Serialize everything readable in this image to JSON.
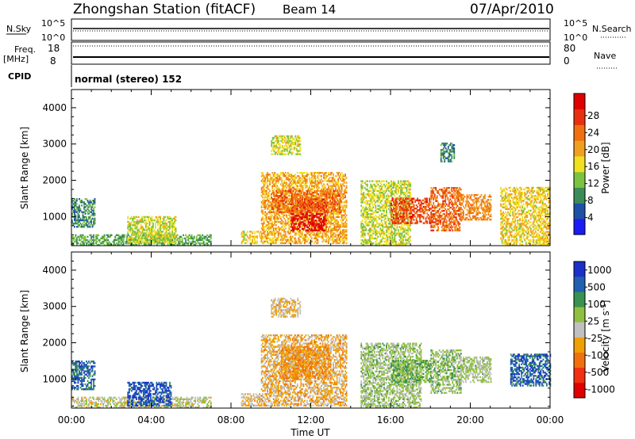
{
  "header": {
    "station": "Zhongshan Station (fitACF)",
    "beam": "Beam 14",
    "date": "07/Apr/2010"
  },
  "status": {
    "nsky_label": "N.Sky",
    "nsky_ticks": [
      "10^5",
      "10^0"
    ],
    "freq_label": "Freq.",
    "freq_unit": "[MHz]",
    "freq_ticks": [
      "18",
      "8"
    ],
    "cpid_label": "CPID",
    "cpid_text": "normal (stereo) 152",
    "nsearch_label": "N.Search",
    "nsearch_ticks": [
      "10^5",
      "10^0"
    ],
    "nave_label": "Nave",
    "nave_ticks": [
      "80",
      "0"
    ]
  },
  "colors": {
    "power": [
      "#1b1bf5",
      "#1e50a8",
      "#3c8c5a",
      "#7cc241",
      "#f0e020",
      "#f0a020",
      "#f07010",
      "#e83010",
      "#e00000"
    ],
    "velocity": [
      "#e00000",
      "#f03010",
      "#f07010",
      "#f0a000",
      "#c0c0c0",
      "#90c040",
      "#3c9050",
      "#2060b0",
      "#1b30c8"
    ]
  },
  "chart_data": [
    {
      "type": "heatmap",
      "quantity": "power",
      "ylabel": "Slant Range [km]",
      "yticks": [
        1000,
        2000,
        3000,
        4000
      ],
      "ylim": [
        200,
        4500
      ],
      "x_ticks": [
        "00:00",
        "04:00",
        "08:00",
        "12:00",
        "16:00",
        "20:00",
        "00:00"
      ],
      "xlim_hours": [
        0,
        24
      ],
      "colorbar": {
        "label": "Power [dB]",
        "tick_labels": [
          "4",
          "8",
          "12",
          "16",
          "20",
          "24",
          "28"
        ],
        "range": [
          0,
          30
        ]
      },
      "echo_regions": [
        {
          "t": [
            0.0,
            7.0
          ],
          "r": [
            200,
            500
          ],
          "value": 10
        },
        {
          "t": [
            0.0,
            1.2
          ],
          "r": [
            700,
            1500
          ],
          "value": 8
        },
        {
          "t": [
            2.8,
            5.2
          ],
          "r": [
            250,
            1000
          ],
          "value": 14
        },
        {
          "t": [
            8.5,
            9.5
          ],
          "r": [
            250,
            600
          ],
          "value": 16
        },
        {
          "t": [
            9.5,
            13.8
          ],
          "r": [
            250,
            2200
          ],
          "value": 18
        },
        {
          "t": [
            11.0,
            12.8
          ],
          "r": [
            600,
            1500
          ],
          "value": 28
        },
        {
          "t": [
            10.0,
            13.5
          ],
          "r": [
            1100,
            1700
          ],
          "value": 22
        },
        {
          "t": [
            14.5,
            17.0
          ],
          "r": [
            200,
            2000
          ],
          "value": 14
        },
        {
          "t": [
            16.0,
            18.0
          ],
          "r": [
            800,
            1500
          ],
          "value": 24
        },
        {
          "t": [
            18.0,
            19.5
          ],
          "r": [
            600,
            1800
          ],
          "value": 22
        },
        {
          "t": [
            18.5,
            19.2
          ],
          "r": [
            2500,
            3000
          ],
          "value": 8
        },
        {
          "t": [
            19.5,
            21.0
          ],
          "r": [
            900,
            1600
          ],
          "value": 20
        },
        {
          "t": [
            21.5,
            24.0
          ],
          "r": [
            200,
            1800
          ],
          "value": 16
        },
        {
          "t": [
            10.0,
            11.5
          ],
          "r": [
            2700,
            3200
          ],
          "value": 14
        }
      ]
    },
    {
      "type": "heatmap",
      "quantity": "velocity",
      "ylabel": "Slant Range [km]",
      "yticks": [
        1000,
        2000,
        3000,
        4000
      ],
      "ylim": [
        200,
        4500
      ],
      "x_ticks": [
        "00:00",
        "04:00",
        "08:00",
        "12:00",
        "16:00",
        "20:00",
        "00:00"
      ],
      "xlim_hours": [
        0,
        24
      ],
      "xlabel": "Time UT",
      "colorbar": {
        "label": "Velocity [m s^-1]",
        "tick_labels": [
          "1000",
          "500",
          "100",
          "25",
          "-25",
          "-100",
          "-500",
          "-1000"
        ],
        "range": [
          -1200,
          1200
        ]
      },
      "echo_regions": [
        {
          "t": [
            0.0,
            7.0
          ],
          "r": [
            200,
            500
          ],
          "value": 50
        },
        {
          "t": [
            0.0,
            1.2
          ],
          "r": [
            700,
            1500
          ],
          "value": 800
        },
        {
          "t": [
            2.8,
            5.0
          ],
          "r": [
            250,
            900
          ],
          "value": 900
        },
        {
          "t": [
            8.5,
            9.5
          ],
          "r": [
            250,
            600
          ],
          "value": -150
        },
        {
          "t": [
            9.5,
            13.8
          ],
          "r": [
            250,
            2200
          ],
          "value": -200
        },
        {
          "t": [
            10.5,
            13.0
          ],
          "r": [
            1000,
            1900
          ],
          "value": -350
        },
        {
          "t": [
            14.5,
            17.5
          ],
          "r": [
            200,
            2000
          ],
          "value": 200
        },
        {
          "t": [
            16.0,
            18.0
          ],
          "r": [
            900,
            1500
          ],
          "value": 400
        },
        {
          "t": [
            18.0,
            19.5
          ],
          "r": [
            600,
            1800
          ],
          "value": 250
        },
        {
          "t": [
            19.5,
            21.0
          ],
          "r": [
            900,
            1600
          ],
          "value": 150
        },
        {
          "t": [
            22.0,
            24.0
          ],
          "r": [
            800,
            1700
          ],
          "value": 800
        },
        {
          "t": [
            10.0,
            11.5
          ],
          "r": [
            2700,
            3200
          ],
          "value": -150
        }
      ]
    }
  ]
}
